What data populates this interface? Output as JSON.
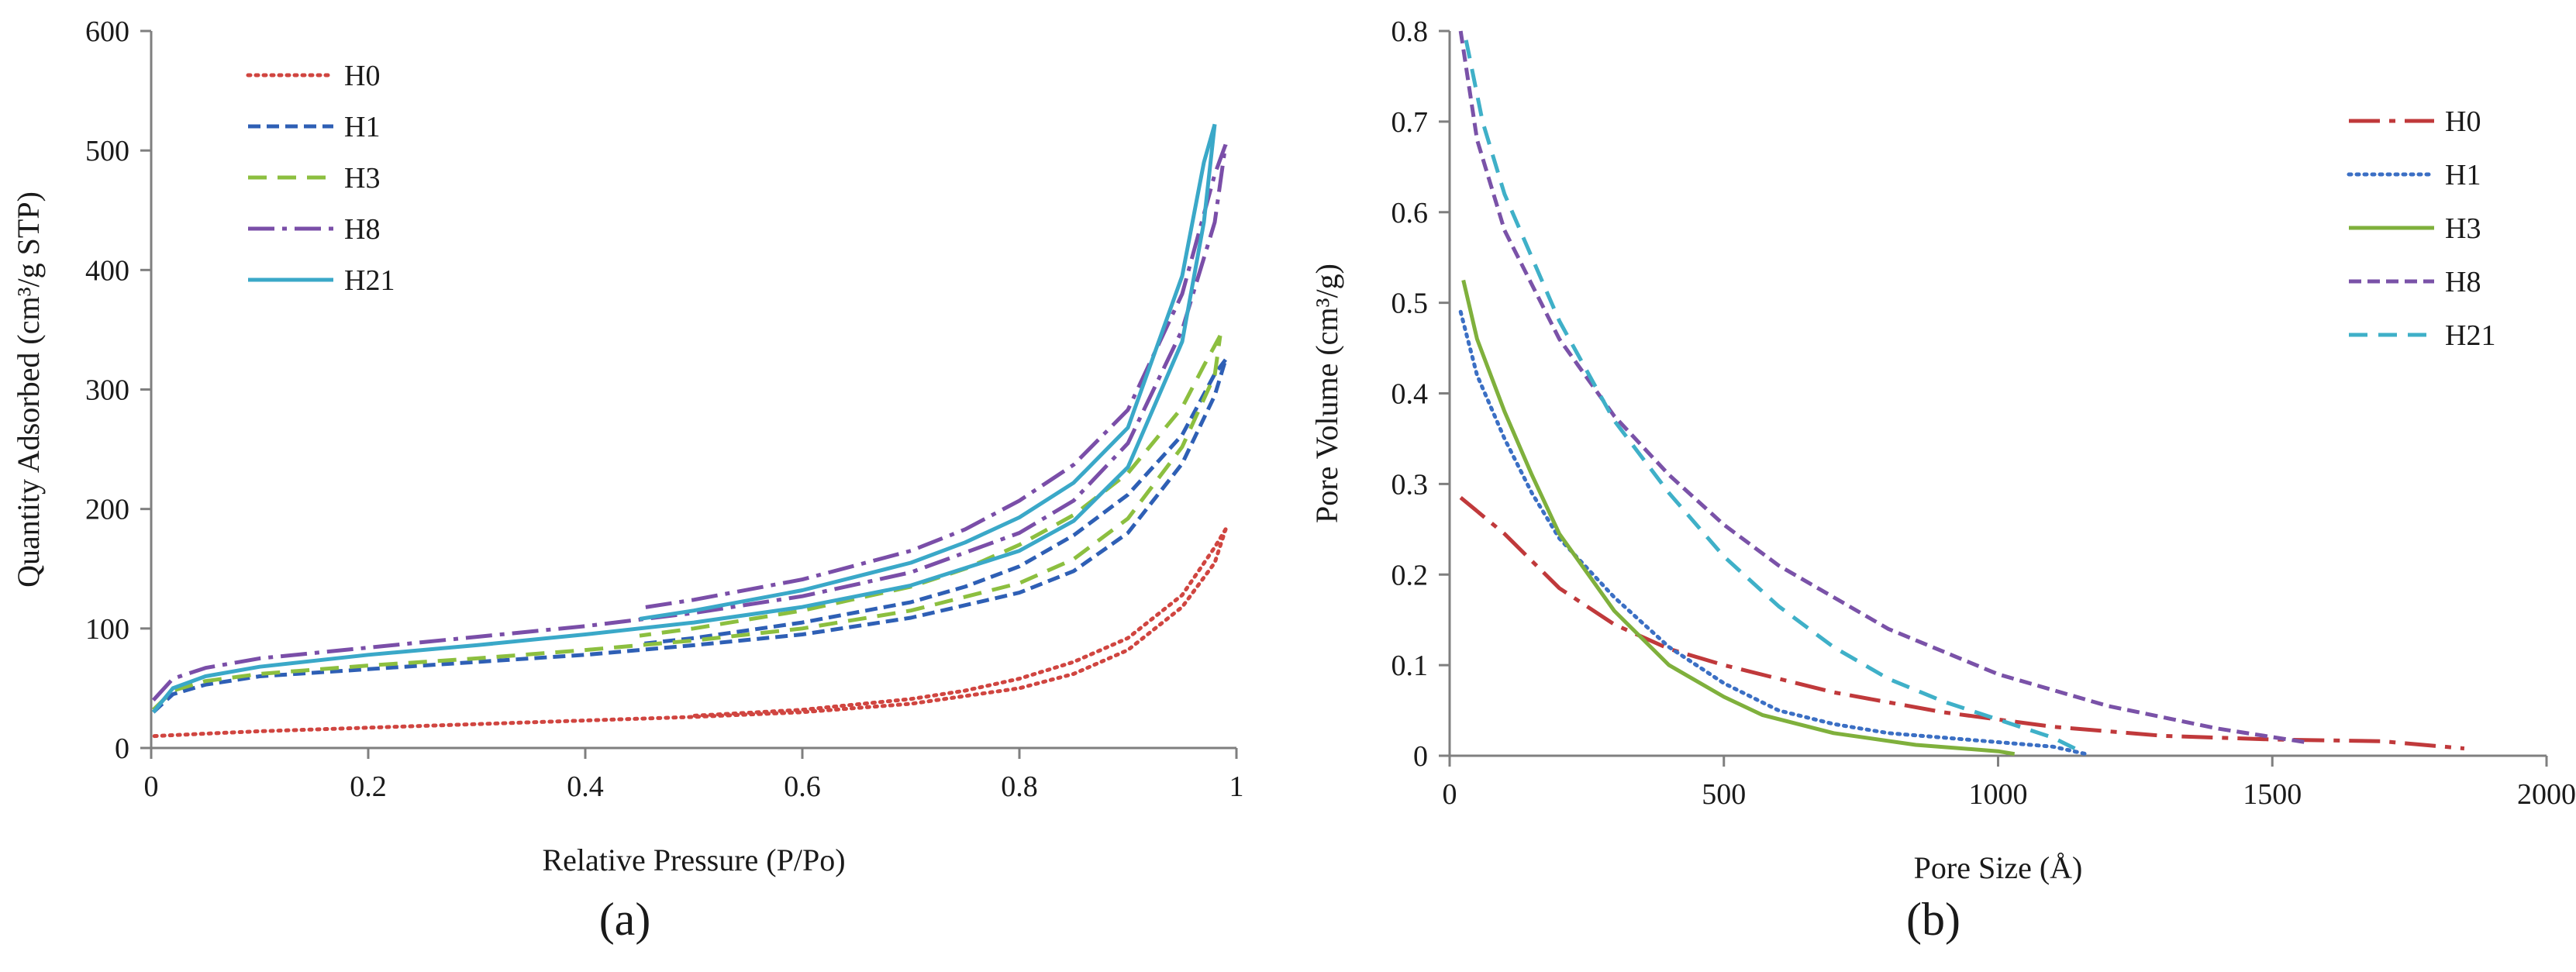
{
  "chart_data": [
    {
      "type": "line",
      "panel_label": "(a)",
      "xlabel": "Relative Pressure (P/Po)",
      "ylabel": "Quantity Adsorbed (cm³/g STP)",
      "xlim": [
        0,
        1
      ],
      "ylim": [
        0,
        600
      ],
      "x_ticks": [
        0,
        0.2,
        0.4,
        0.6,
        0.8,
        1
      ],
      "x_tick_labels": [
        "0",
        "0.2",
        "0.4",
        "0.6",
        "0.8",
        "1"
      ],
      "y_ticks": [
        0,
        100,
        200,
        300,
        400,
        500,
        600
      ],
      "y_tick_labels": [
        "0",
        "100",
        "200",
        "300",
        "400",
        "500",
        "600"
      ],
      "legend_position": "top-left",
      "series": [
        {
          "name": "H0",
          "color": "#d04540",
          "dash": "dotted",
          "adsorption": [
            [
              0.003,
              10
            ],
            [
              0.05,
              12
            ],
            [
              0.1,
              14
            ],
            [
              0.2,
              17
            ],
            [
              0.3,
              20
            ],
            [
              0.4,
              23
            ],
            [
              0.5,
              26
            ],
            [
              0.6,
              30
            ],
            [
              0.7,
              37
            ],
            [
              0.8,
              50
            ],
            [
              0.85,
              62
            ],
            [
              0.9,
              82
            ],
            [
              0.95,
              118
            ],
            [
              0.98,
              155
            ],
            [
              0.99,
              183
            ]
          ],
          "desorption": [
            [
              0.99,
              183
            ],
            [
              0.98,
              168
            ],
            [
              0.95,
              128
            ],
            [
              0.9,
              92
            ],
            [
              0.85,
              72
            ],
            [
              0.8,
              58
            ],
            [
              0.75,
              48
            ],
            [
              0.7,
              41
            ],
            [
              0.6,
              32
            ],
            [
              0.5,
              27
            ]
          ]
        },
        {
          "name": "H1",
          "color": "#2e5fb5",
          "dash": "dashed",
          "adsorption": [
            [
              0.002,
              30
            ],
            [
              0.02,
              45
            ],
            [
              0.05,
              53
            ],
            [
              0.1,
              60
            ],
            [
              0.2,
              66
            ],
            [
              0.3,
              72
            ],
            [
              0.4,
              78
            ],
            [
              0.5,
              86
            ],
            [
              0.6,
              95
            ],
            [
              0.7,
              109
            ],
            [
              0.8,
              130
            ],
            [
              0.85,
              148
            ],
            [
              0.9,
              180
            ],
            [
              0.95,
              238
            ],
            [
              0.98,
              295
            ],
            [
              0.99,
              325
            ]
          ],
          "desorption": [
            [
              0.99,
              325
            ],
            [
              0.98,
              313
            ],
            [
              0.95,
              262
            ],
            [
              0.9,
              212
            ],
            [
              0.85,
              178
            ],
            [
              0.8,
              152
            ],
            [
              0.75,
              135
            ],
            [
              0.7,
              122
            ],
            [
              0.6,
              105
            ],
            [
              0.5,
              92
            ],
            [
              0.45,
              87
            ]
          ]
        },
        {
          "name": "H3",
          "color": "#8cbf3f",
          "dash": "long-dashed",
          "adsorption": [
            [
              0.002,
              32
            ],
            [
              0.02,
              48
            ],
            [
              0.05,
              56
            ],
            [
              0.1,
              62
            ],
            [
              0.2,
              69
            ],
            [
              0.3,
              75
            ],
            [
              0.4,
              82
            ],
            [
              0.5,
              90
            ],
            [
              0.6,
              100
            ],
            [
              0.7,
              115
            ],
            [
              0.8,
              138
            ],
            [
              0.85,
              158
            ],
            [
              0.9,
              192
            ],
            [
              0.95,
              252
            ],
            [
              0.98,
              312
            ],
            [
              0.985,
              345
            ]
          ],
          "desorption": [
            [
              0.985,
              345
            ],
            [
              0.97,
              320
            ],
            [
              0.95,
              285
            ],
            [
              0.9,
              230
            ],
            [
              0.85,
              195
            ],
            [
              0.8,
              170
            ],
            [
              0.75,
              150
            ],
            [
              0.7,
              135
            ],
            [
              0.6,
              115
            ],
            [
              0.5,
              100
            ],
            [
              0.45,
              94
            ]
          ]
        },
        {
          "name": "H8",
          "color": "#7a4ea8",
          "dash": "dash-dot",
          "adsorption": [
            [
              0.002,
              40
            ],
            [
              0.02,
              58
            ],
            [
              0.05,
              67
            ],
            [
              0.1,
              75
            ],
            [
              0.2,
              84
            ],
            [
              0.3,
              93
            ],
            [
              0.4,
              102
            ],
            [
              0.5,
              113
            ],
            [
              0.6,
              127
            ],
            [
              0.7,
              147
            ],
            [
              0.8,
              180
            ],
            [
              0.85,
              207
            ],
            [
              0.9,
              255
            ],
            [
              0.95,
              350
            ],
            [
              0.98,
              440
            ],
            [
              0.99,
              505
            ]
          ],
          "desorption": [
            [
              0.99,
              505
            ],
            [
              0.98,
              480
            ],
            [
              0.95,
              380
            ],
            [
              0.9,
              283
            ],
            [
              0.85,
              237
            ],
            [
              0.8,
              207
            ],
            [
              0.75,
              183
            ],
            [
              0.7,
              165
            ],
            [
              0.6,
              141
            ],
            [
              0.5,
              124
            ],
            [
              0.45,
              117
            ]
          ]
        },
        {
          "name": "H21",
          "color": "#3aa8c8",
          "dash": "solid",
          "adsorption": [
            [
              0.002,
              30
            ],
            [
              0.02,
              50
            ],
            [
              0.05,
              60
            ],
            [
              0.1,
              68
            ],
            [
              0.2,
              78
            ],
            [
              0.3,
              86
            ],
            [
              0.4,
              95
            ],
            [
              0.5,
              105
            ],
            [
              0.6,
              118
            ],
            [
              0.7,
              136
            ],
            [
              0.8,
              165
            ],
            [
              0.85,
              190
            ],
            [
              0.9,
              235
            ],
            [
              0.95,
              340
            ],
            [
              0.97,
              440
            ],
            [
              0.98,
              522
            ]
          ],
          "desorption": [
            [
              0.98,
              522
            ],
            [
              0.97,
              490
            ],
            [
              0.95,
              395
            ],
            [
              0.9,
              268
            ],
            [
              0.85,
              222
            ],
            [
              0.8,
              193
            ],
            [
              0.75,
              172
            ],
            [
              0.7,
              155
            ],
            [
              0.6,
              132
            ],
            [
              0.5,
              115
            ],
            [
              0.45,
              108
            ]
          ]
        }
      ]
    },
    {
      "type": "line",
      "panel_label": "(b)",
      "xlabel": "Pore Size (Å)",
      "ylabel": "Pore Volume (cm³/g)",
      "xlim": [
        0,
        2000
      ],
      "ylim": [
        0,
        0.8
      ],
      "x_ticks": [
        0,
        500,
        1000,
        1500,
        2000
      ],
      "x_tick_labels": [
        "0",
        "500",
        "1000",
        "1500",
        "2000"
      ],
      "y_ticks": [
        0,
        0.1,
        0.2,
        0.3,
        0.4,
        0.5,
        0.6,
        0.7,
        0.8
      ],
      "y_tick_labels": [
        "0",
        "0.1",
        "0.2",
        "0.3",
        "0.4",
        "0.5",
        "0.6",
        "0.7",
        "0.8"
      ],
      "legend_position": "top-right",
      "series": [
        {
          "name": "H0",
          "color": "#c0393b",
          "dash": "long-dash-dot",
          "points": [
            [
              20,
              0.285
            ],
            [
              100,
              0.245
            ],
            [
              200,
              0.185
            ],
            [
              300,
              0.145
            ],
            [
              400,
              0.118
            ],
            [
              500,
              0.1
            ],
            [
              700,
              0.07
            ],
            [
              900,
              0.048
            ],
            [
              1100,
              0.032
            ],
            [
              1300,
              0.022
            ],
            [
              1500,
              0.018
            ],
            [
              1700,
              0.016
            ],
            [
              1850,
              0.008
            ]
          ]
        },
        {
          "name": "H1",
          "color": "#3b6fc4",
          "dash": "dotted",
          "points": [
            [
              20,
              0.49
            ],
            [
              50,
              0.42
            ],
            [
              100,
              0.35
            ],
            [
              150,
              0.29
            ],
            [
              200,
              0.24
            ],
            [
              300,
              0.175
            ],
            [
              400,
              0.12
            ],
            [
              500,
              0.08
            ],
            [
              600,
              0.05
            ],
            [
              700,
              0.035
            ],
            [
              800,
              0.025
            ],
            [
              900,
              0.02
            ],
            [
              1000,
              0.015
            ],
            [
              1100,
              0.01
            ],
            [
              1160,
              0.002
            ]
          ]
        },
        {
          "name": "H3",
          "color": "#7fb03c",
          "dash": "solid",
          "points": [
            [
              25,
              0.525
            ],
            [
              50,
              0.46
            ],
            [
              100,
              0.38
            ],
            [
              150,
              0.31
            ],
            [
              200,
              0.245
            ],
            [
              300,
              0.16
            ],
            [
              400,
              0.1
            ],
            [
              500,
              0.065
            ],
            [
              570,
              0.045
            ],
            [
              700,
              0.025
            ],
            [
              850,
              0.012
            ],
            [
              1000,
              0.005
            ],
            [
              1030,
              0.002
            ]
          ]
        },
        {
          "name": "H8",
          "color": "#7a52a8",
          "dash": "dashed",
          "points": [
            [
              20,
              0.8
            ],
            [
              50,
              0.68
            ],
            [
              100,
              0.58
            ],
            [
              200,
              0.46
            ],
            [
              300,
              0.375
            ],
            [
              400,
              0.31
            ],
            [
              500,
              0.255
            ],
            [
              600,
              0.21
            ],
            [
              700,
              0.175
            ],
            [
              800,
              0.14
            ],
            [
              900,
              0.115
            ],
            [
              1000,
              0.09
            ],
            [
              1200,
              0.055
            ],
            [
              1400,
              0.03
            ],
            [
              1560,
              0.015
            ]
          ]
        },
        {
          "name": "H21",
          "color": "#3fb0c8",
          "dash": "long-dashed",
          "points": [
            [
              30,
              0.79
            ],
            [
              60,
              0.7
            ],
            [
              100,
              0.62
            ],
            [
              200,
              0.48
            ],
            [
              300,
              0.37
            ],
            [
              400,
              0.29
            ],
            [
              500,
              0.22
            ],
            [
              600,
              0.165
            ],
            [
              700,
              0.12
            ],
            [
              800,
              0.085
            ],
            [
              900,
              0.06
            ],
            [
              1000,
              0.04
            ],
            [
              1100,
              0.02
            ],
            [
              1150,
              0.005
            ]
          ]
        }
      ]
    }
  ]
}
